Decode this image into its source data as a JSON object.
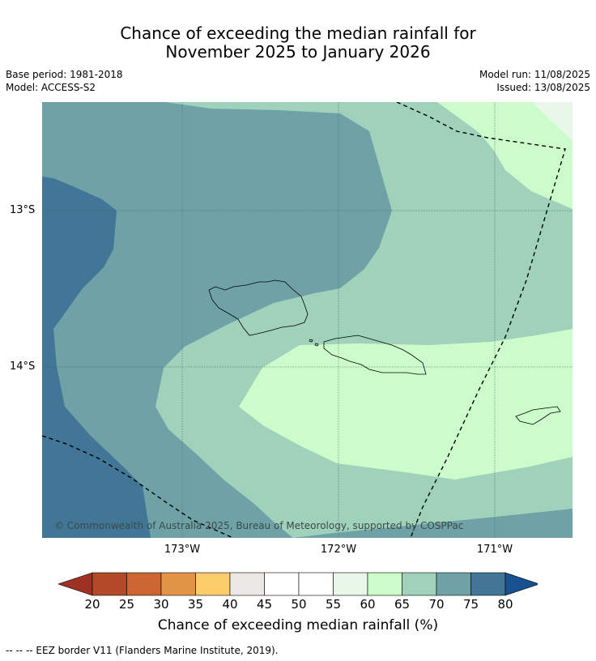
{
  "title": {
    "line1": "Chance of exceeding the median rainfall for",
    "line2": "November 2025 to January 2026"
  },
  "meta_left": {
    "base_period": "Base period: 1981-2018",
    "model": "Model: ACCESS-S2"
  },
  "meta_right": {
    "model_run": "Model run: 11/08/2025",
    "issued": "Issued: 13/08/2025"
  },
  "map": {
    "lat_labels": [
      "13°S",
      "14°S"
    ],
    "lon_labels": [
      "173°W",
      "172°W",
      "171°W"
    ],
    "copyright": "© Commonwealth of Australia 2025, Bureau of Meteorology, supported by COSPPac",
    "zones": {
      "c60_65": "#ccfccc",
      "c65_70": "#9fd1bb",
      "c70_75": "#6fa2a6",
      "c75_80": "#417696",
      "c55_60": "#e9f7e9"
    }
  },
  "colorbar": {
    "ticks": [
      "20",
      "25",
      "30",
      "35",
      "40",
      "45",
      "50",
      "55",
      "60",
      "65",
      "70",
      "75",
      "80"
    ],
    "colors": [
      "#9e3222",
      "#b24a28",
      "#cc6633",
      "#e19445",
      "#fdcc6b",
      "#ece8e5",
      "#ffffff",
      "#ffffff",
      "#e9f7e9",
      "#ccfccc",
      "#9fd1bb",
      "#6fa2a6",
      "#417696",
      "#195190"
    ],
    "label": "Chance of exceeding median rainfall (%)"
  },
  "footer": "--  --  -- EEZ border V11 (Flanders Marine Institute, 2019)."
}
